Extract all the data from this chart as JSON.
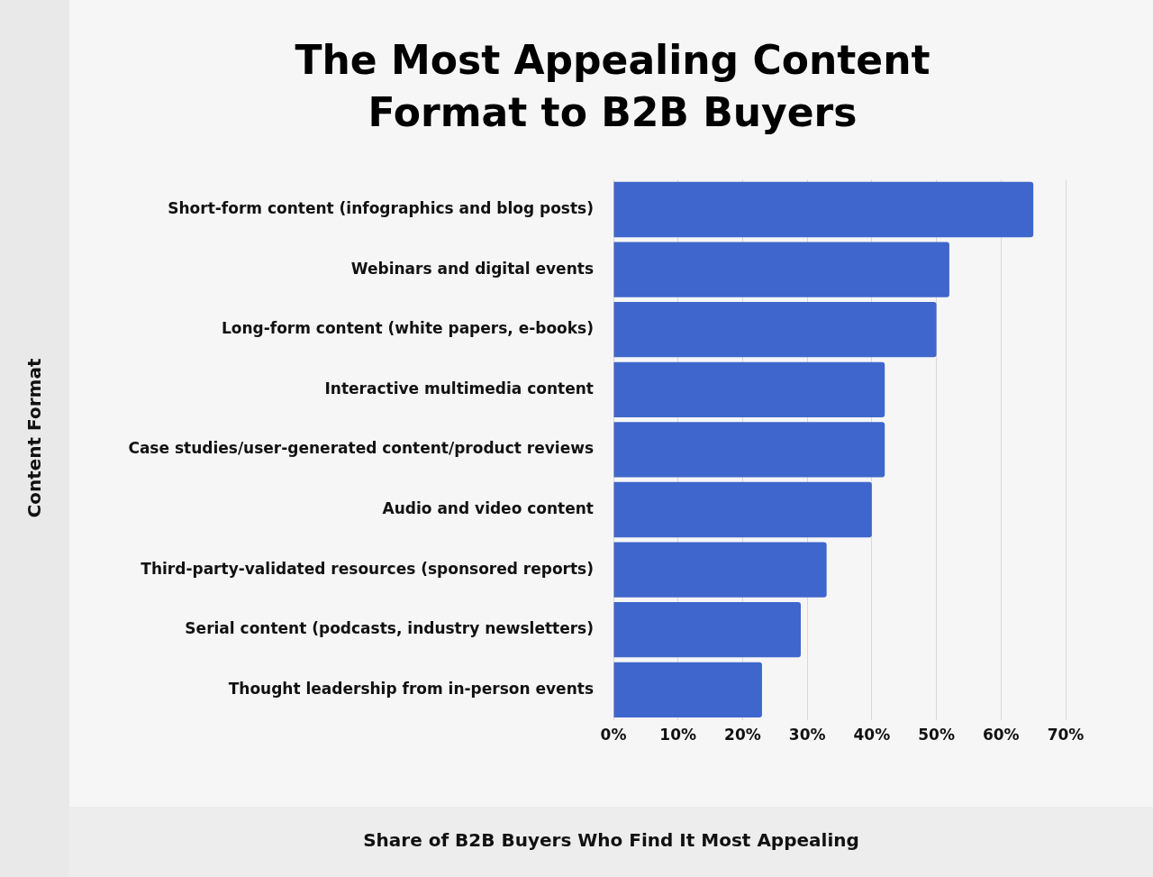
{
  "chart_data": {
    "type": "bar",
    "orientation": "horizontal",
    "title": "The Most Appealing Content Format to B2B Buyers",
    "xlabel": "Share of B2B Buyers Who Find It Most Appealing",
    "ylabel": "Content Format",
    "categories": [
      "Short-form content (infographics and blog posts)",
      "Webinars and digital events",
      "Long-form content (white papers, e-books)",
      "Interactive multimedia content",
      "Case studies/user-generated content/product reviews",
      "Audio and video content",
      "Third-party-validated resources (sponsored reports)",
      "Serial content (podcasts, industry newsletters)",
      "Thought leadership from in-person events"
    ],
    "values": [
      65,
      52,
      50,
      42,
      42,
      40,
      33,
      29,
      23
    ],
    "color": "#3f66cc",
    "xlim": [
      0,
      70
    ],
    "xticks": [
      {
        "value": 0,
        "label": "0%"
      },
      {
        "value": 10,
        "label": "10%"
      },
      {
        "value": 20,
        "label": "20%"
      },
      {
        "value": 30,
        "label": "30%"
      },
      {
        "value": 40,
        "label": "40%"
      },
      {
        "value": 50,
        "label": "50%"
      },
      {
        "value": 60,
        "label": "60%"
      },
      {
        "value": 70,
        "label": "70%"
      }
    ],
    "grid": "x"
  }
}
